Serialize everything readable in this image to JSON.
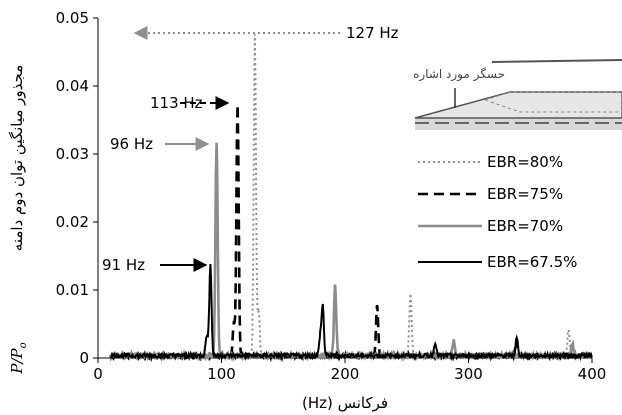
{
  "chart_data": {
    "type": "line",
    "xlabel": "فرکانس (Hz)",
    "ylabel_prefix": "P/P",
    "ylabel_sub": "o",
    "ylabel_text": "مجذور میانگین توان دوم دامنه",
    "xlim": [
      0,
      400
    ],
    "ylim": [
      0,
      0.05
    ],
    "x_ticks": [
      0,
      100,
      200,
      300,
      400
    ],
    "y_ticks": [
      0,
      0.01,
      0.02,
      0.03,
      0.04,
      0.05
    ],
    "x_tick_labels": [
      "0",
      "100",
      "200",
      "300",
      "400"
    ],
    "y_tick_labels": [
      "0",
      "0.01",
      "0.02",
      "0.03",
      "0.04",
      "0.05"
    ],
    "grid": false,
    "legend_position": "right",
    "series": [
      {
        "name": "EBR=80%",
        "color": "#909090",
        "dash": "dotted",
        "peaks": [
          {
            "x": 127,
            "y": 0.047
          },
          {
            "x": 130,
            "y": 0.0065
          },
          {
            "x": 253,
            "y": 0.0093
          },
          {
            "x": 381,
            "y": 0.0038
          }
        ],
        "baseline": 0.0004
      },
      {
        "name": "EBR=75%",
        "color": "#000000",
        "dash": "dashed",
        "peaks": [
          {
            "x": 113,
            "y": 0.037
          },
          {
            "x": 110,
            "y": 0.005
          },
          {
            "x": 226,
            "y": 0.0075
          },
          {
            "x": 339,
            "y": 0.0025
          }
        ],
        "baseline": 0.0003
      },
      {
        "name": "EBR=70%",
        "color": "#8c8c8c",
        "dash": "solid",
        "peaks": [
          {
            "x": 96,
            "y": 0.0315
          },
          {
            "x": 192,
            "y": 0.0105
          },
          {
            "x": 288,
            "y": 0.0022
          },
          {
            "x": 384,
            "y": 0.0018
          }
        ],
        "baseline": 0.0004
      },
      {
        "name": "EBR=67.5%",
        "color": "#000000",
        "dash": "solid",
        "peaks": [
          {
            "x": 91,
            "y": 0.0137
          },
          {
            "x": 88,
            "y": 0.003
          },
          {
            "x": 182,
            "y": 0.0072
          },
          {
            "x": 180,
            "y": 0.003
          },
          {
            "x": 273,
            "y": 0.002
          },
          {
            "x": 339,
            "y": 0.0025
          }
        ],
        "baseline": 0.0004
      }
    ],
    "annotations": [
      {
        "text": "127 Hz",
        "target_x": 127,
        "target_y": 0.047,
        "series": "EBR=80%"
      },
      {
        "text": "113 Hz",
        "target_x": 113,
        "target_y": 0.037,
        "series": "EBR=75%"
      },
      {
        "text": "96 Hz",
        "target_x": 96,
        "target_y": 0.0315,
        "series": "EBR=70%"
      },
      {
        "text": "91 Hz",
        "target_x": 91,
        "target_y": 0.0137,
        "series": "EBR=67.5%"
      }
    ],
    "inset": {
      "label": "حسگر مورد اشاره"
    }
  }
}
